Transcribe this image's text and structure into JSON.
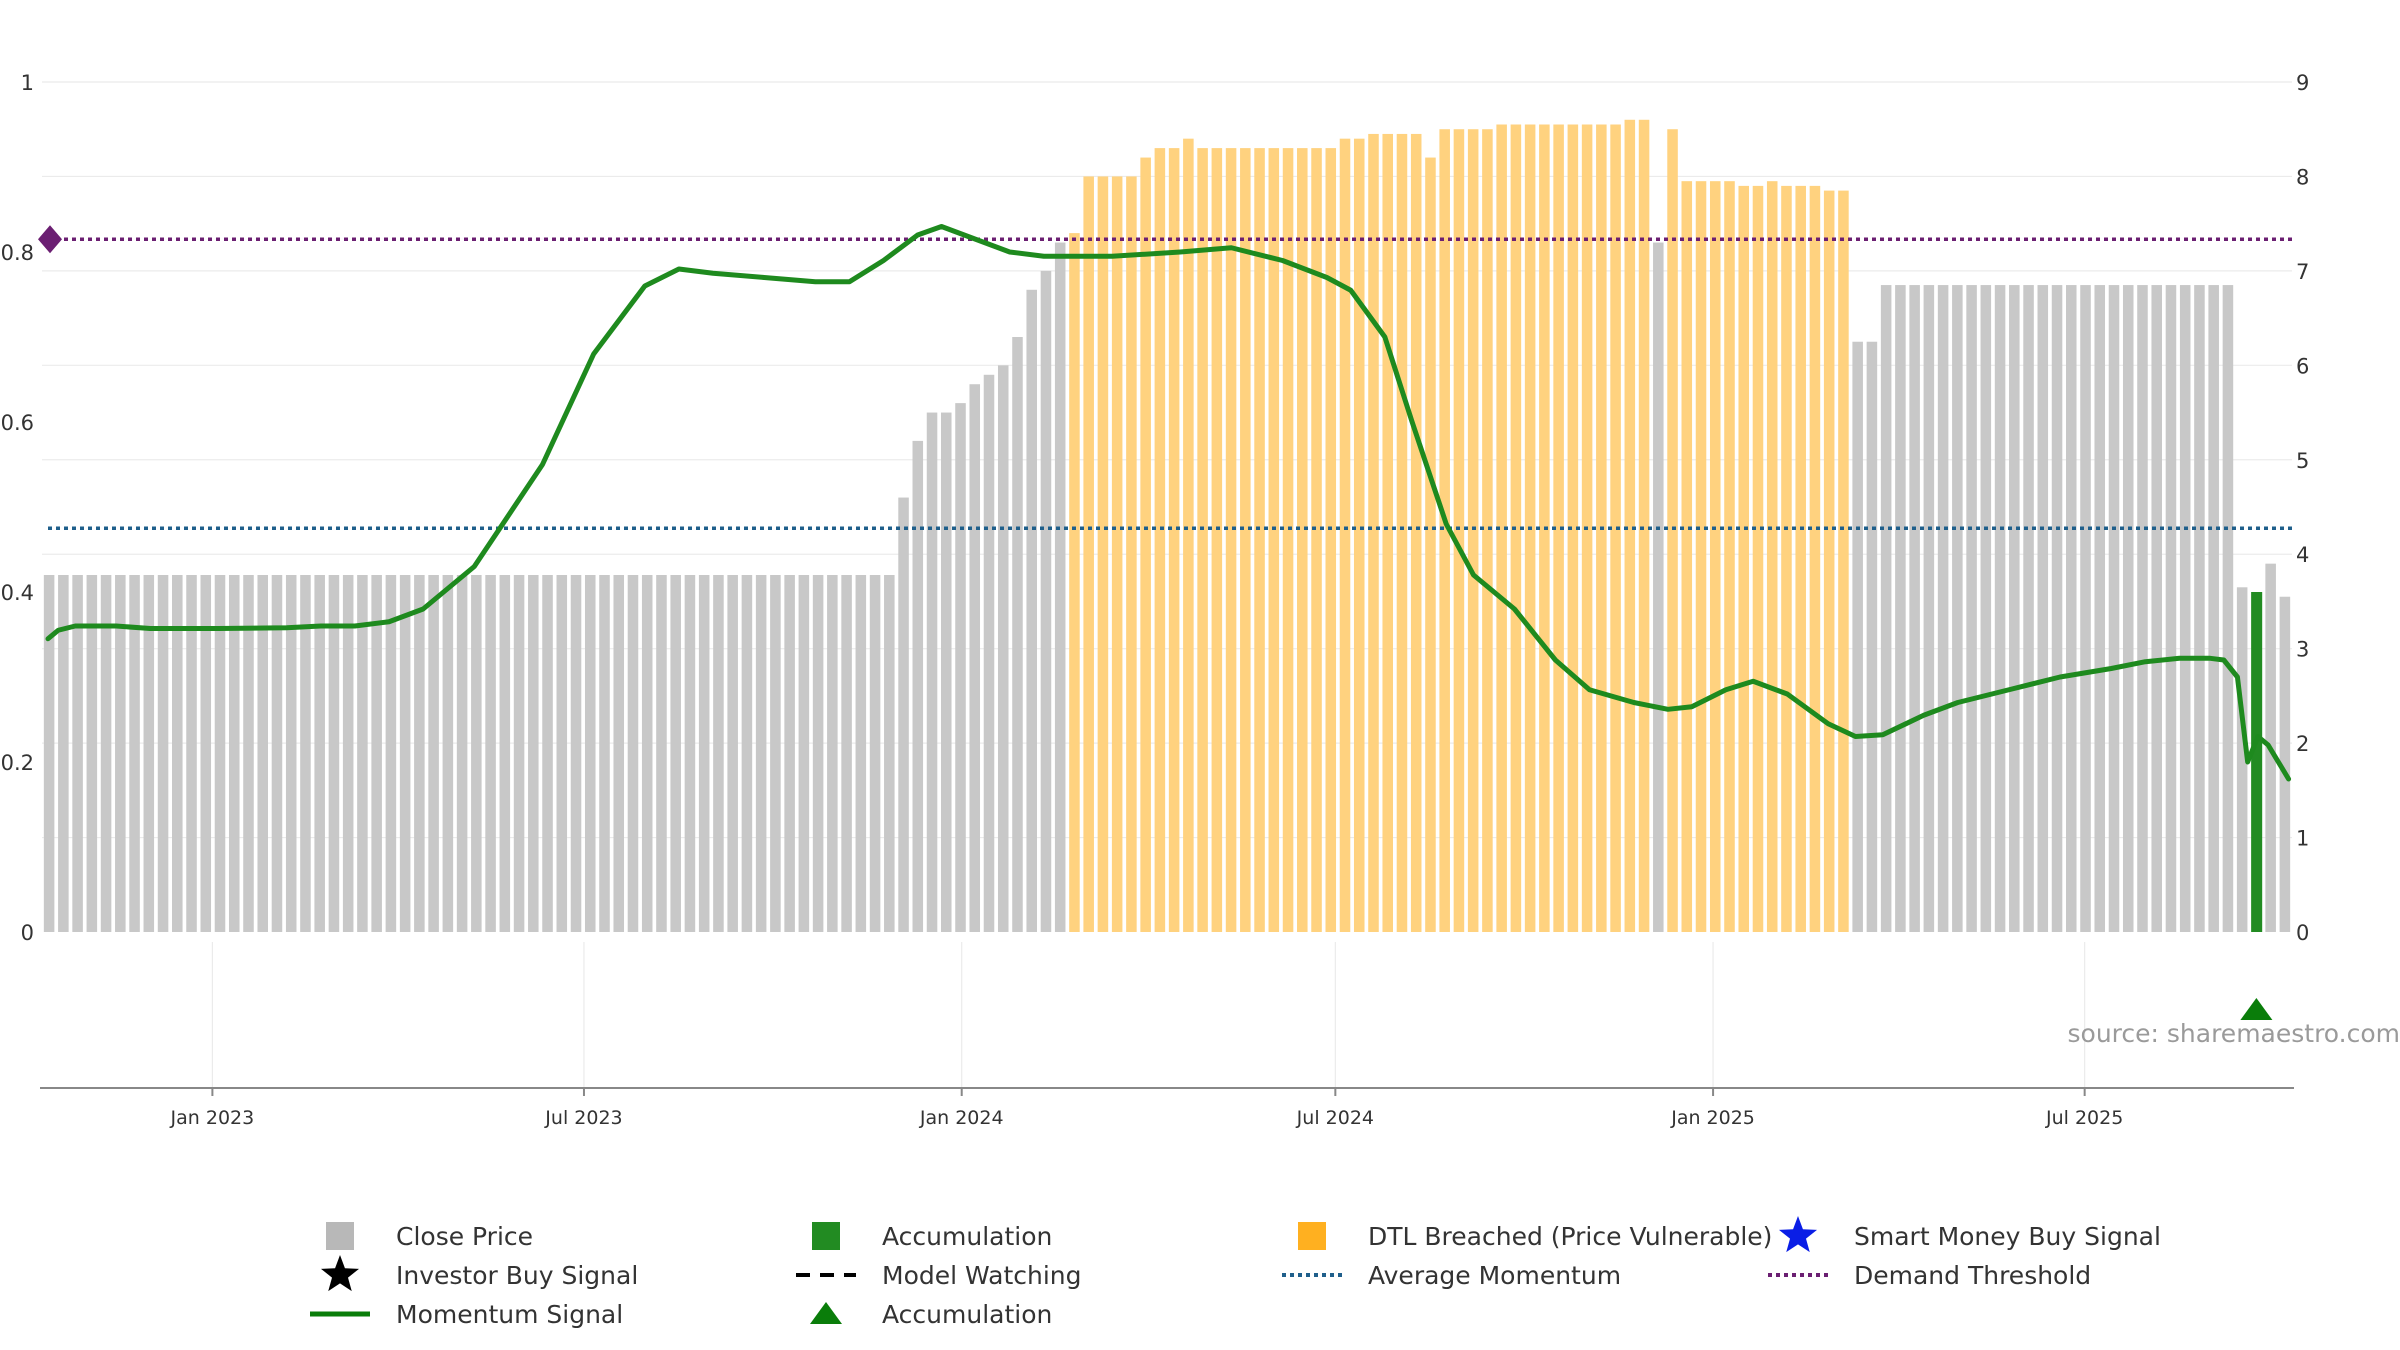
{
  "chart_data": {
    "type": "bar",
    "title": "",
    "source": "source: sharemaestro.com",
    "left_axis": {
      "ylim": [
        0,
        1
      ],
      "ticks": [
        0,
        0.2,
        0.4,
        0.6,
        0.8,
        1
      ],
      "tick_labels": [
        "0",
        "0.2",
        "0.4",
        "0.6",
        "0.8",
        "1"
      ]
    },
    "right_axis": {
      "ylim": [
        0,
        9
      ],
      "ticks": [
        0,
        1,
        2,
        3,
        4,
        5,
        6,
        7,
        8,
        9
      ],
      "tick_labels": [
        "0",
        "1",
        "2",
        "3",
        "4",
        "5",
        "6",
        "7",
        "8",
        "9"
      ]
    },
    "x_axis": {
      "start_date": "2022-10-10",
      "end_date": "2025-10-10",
      "ticks": [
        {
          "date": "2023-01-01",
          "label": "Jan 2023"
        },
        {
          "date": "2023-07-01",
          "label": "Jul 2023"
        },
        {
          "date": "2024-01-01",
          "label": "Jan 2024"
        },
        {
          "date": "2024-07-01",
          "label": "Jul 2024"
        },
        {
          "date": "2025-01-01",
          "label": "Jan 2025"
        },
        {
          "date": "2025-07-01",
          "label": "Jul 2025"
        }
      ]
    },
    "price_segments": [
      {
        "count": 60,
        "value": 3.78,
        "status": "close"
      },
      {
        "count": 1,
        "value": 4.6,
        "status": "close"
      },
      {
        "count": 1,
        "value": 5.2,
        "status": "close"
      },
      {
        "count": 2,
        "value": 5.5,
        "status": "close"
      },
      {
        "count": 1,
        "value": 5.6,
        "status": "close"
      },
      {
        "count": 1,
        "value": 5.8,
        "status": "close"
      },
      {
        "count": 1,
        "value": 5.9,
        "status": "close"
      },
      {
        "count": 1,
        "value": 6.0,
        "status": "close"
      },
      {
        "count": 1,
        "value": 6.3,
        "status": "close"
      },
      {
        "count": 1,
        "value": 6.8,
        "status": "close"
      },
      {
        "count": 1,
        "value": 7.0,
        "status": "close"
      },
      {
        "count": 1,
        "value": 7.3,
        "status": "close"
      },
      {
        "count": 1,
        "value": 7.4,
        "status": "dtl"
      },
      {
        "count": 4,
        "value": 8.0,
        "status": "dtl"
      },
      {
        "count": 1,
        "value": 8.2,
        "status": "dtl"
      },
      {
        "count": 2,
        "value": 8.3,
        "status": "dtl"
      },
      {
        "count": 1,
        "value": 8.4,
        "status": "dtl"
      },
      {
        "count": 10,
        "value": 8.3,
        "status": "dtl"
      },
      {
        "count": 2,
        "value": 8.4,
        "status": "dtl"
      },
      {
        "count": 4,
        "value": 8.45,
        "status": "dtl"
      },
      {
        "count": 1,
        "value": 8.2,
        "status": "dtl"
      },
      {
        "count": 4,
        "value": 8.5,
        "status": "dtl"
      },
      {
        "count": 9,
        "value": 8.55,
        "status": "dtl"
      },
      {
        "count": 2,
        "value": 8.6,
        "status": "dtl"
      },
      {
        "count": 1,
        "value": 7.3,
        "status": "close"
      },
      {
        "count": 1,
        "value": 8.5,
        "status": "dtl"
      },
      {
        "count": 4,
        "value": 7.95,
        "status": "dtl"
      },
      {
        "count": 2,
        "value": 7.9,
        "status": "dtl"
      },
      {
        "count": 1,
        "value": 7.95,
        "status": "dtl"
      },
      {
        "count": 3,
        "value": 7.9,
        "status": "dtl"
      },
      {
        "count": 2,
        "value": 7.85,
        "status": "dtl"
      },
      {
        "count": 2,
        "value": 6.25,
        "status": "close"
      },
      {
        "count": 25,
        "value": 6.85,
        "status": "close"
      },
      {
        "count": 1,
        "value": 3.65,
        "status": "close"
      },
      {
        "count": 1,
        "value": 3.6,
        "status": "accumulation"
      },
      {
        "count": 1,
        "value": 3.9,
        "status": "close"
      },
      {
        "count": 1,
        "value": 3.55,
        "status": "close"
      }
    ],
    "momentum_signal": [
      [
        0,
        0.345
      ],
      [
        3,
        0.355
      ],
      [
        8,
        0.36
      ],
      [
        20,
        0.36
      ],
      [
        30,
        0.357
      ],
      [
        50,
        0.357
      ],
      [
        70,
        0.358
      ],
      [
        80,
        0.36
      ],
      [
        90,
        0.36
      ],
      [
        100,
        0.365
      ],
      [
        110,
        0.38
      ],
      [
        125,
        0.43
      ],
      [
        145,
        0.55
      ],
      [
        160,
        0.68
      ],
      [
        175,
        0.76
      ],
      [
        185,
        0.78
      ],
      [
        195,
        0.775
      ],
      [
        210,
        0.77
      ],
      [
        225,
        0.765
      ],
      [
        235,
        0.765
      ],
      [
        245,
        0.79
      ],
      [
        255,
        0.82
      ],
      [
        262,
        0.83
      ],
      [
        272,
        0.815
      ],
      [
        282,
        0.8
      ],
      [
        292,
        0.795
      ],
      [
        312,
        0.795
      ],
      [
        332,
        0.8
      ],
      [
        347,
        0.805
      ],
      [
        362,
        0.79
      ],
      [
        375,
        0.77
      ],
      [
        382,
        0.755
      ],
      [
        392,
        0.7
      ],
      [
        400,
        0.6
      ],
      [
        410,
        0.48
      ],
      [
        418,
        0.42
      ],
      [
        430,
        0.38
      ],
      [
        442,
        0.32
      ],
      [
        452,
        0.285
      ],
      [
        465,
        0.27
      ],
      [
        475,
        0.262
      ],
      [
        482,
        0.265
      ],
      [
        492,
        0.285
      ],
      [
        500,
        0.295
      ],
      [
        510,
        0.28
      ],
      [
        522,
        0.245
      ],
      [
        530,
        0.23
      ],
      [
        538,
        0.232
      ],
      [
        550,
        0.255
      ],
      [
        560,
        0.27
      ],
      [
        575,
        0.285
      ],
      [
        590,
        0.3
      ],
      [
        605,
        0.31
      ],
      [
        615,
        0.318
      ],
      [
        625,
        0.322
      ],
      [
        634,
        0.322
      ],
      [
        638,
        0.32
      ],
      [
        642,
        0.3
      ],
      [
        645,
        0.2
      ],
      [
        648,
        0.23
      ],
      [
        651,
        0.22
      ],
      [
        654,
        0.2
      ],
      [
        657,
        0.18
      ]
    ],
    "average_momentum": 0.475,
    "demand_threshold": 0.815,
    "accumulation_marker_index": 183,
    "colors": {
      "close": "#c8c8c8",
      "dtl": "#ffd27f",
      "accumulation": "#228b22",
      "momentum": "#1e8a1e",
      "average_momentum": "#1f5f8b",
      "demand_threshold": "#6b1f72",
      "grid": "#ebebeb",
      "axis": "#888888"
    },
    "legend": [
      {
        "label": "Close Price",
        "kind": "square",
        "color": "#b8b8b8"
      },
      {
        "label": "Accumulation",
        "kind": "square",
        "color": "#228b22"
      },
      {
        "label": "DTL Breached (Price Vulnerable)",
        "kind": "square",
        "color": "#ffb020"
      },
      {
        "label": "Smart Money Buy Signal",
        "kind": "star",
        "color": "#0a1ee6"
      },
      {
        "label": "Investor Buy Signal",
        "kind": "star",
        "color": "#000000"
      },
      {
        "label": "Model Watching",
        "kind": "dashed",
        "color": "#000000"
      },
      {
        "label": "Average Momentum",
        "kind": "dotted",
        "color": "#1f5f8b"
      },
      {
        "label": "Demand Threshold",
        "kind": "dotted",
        "color": "#6b1f72"
      },
      {
        "label": "Momentum Signal",
        "kind": "line",
        "color": "#0a7d0a"
      },
      {
        "label": "Accumulation",
        "kind": "triangle",
        "color": "#0a7d0a"
      }
    ]
  }
}
